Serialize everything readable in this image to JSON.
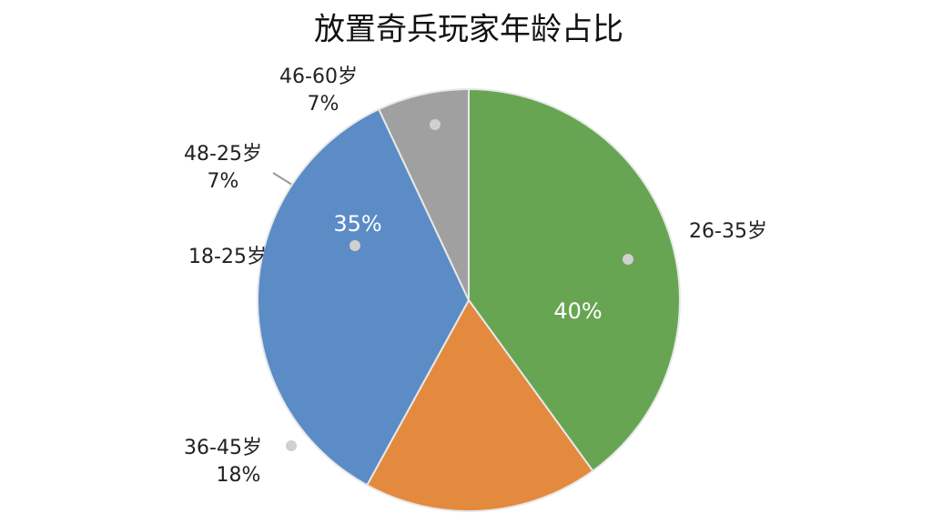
{
  "chart_data": {
    "type": "pie",
    "title": "放置奇兵玩家年龄占比",
    "categories": [
      "26-35岁",
      "36-45岁",
      "18-25岁",
      "46-60岁"
    ],
    "values": [
      40,
      18,
      35,
      7
    ],
    "value_labels": [
      "40%",
      "18%",
      "35%",
      "7%"
    ],
    "colors": [
      "#67a553",
      "#e38a3e",
      "#5b8cc6",
      "#a0a0a0"
    ],
    "annotations": [
      {
        "text": "48-25岁",
        "label": "7%"
      }
    ]
  }
}
